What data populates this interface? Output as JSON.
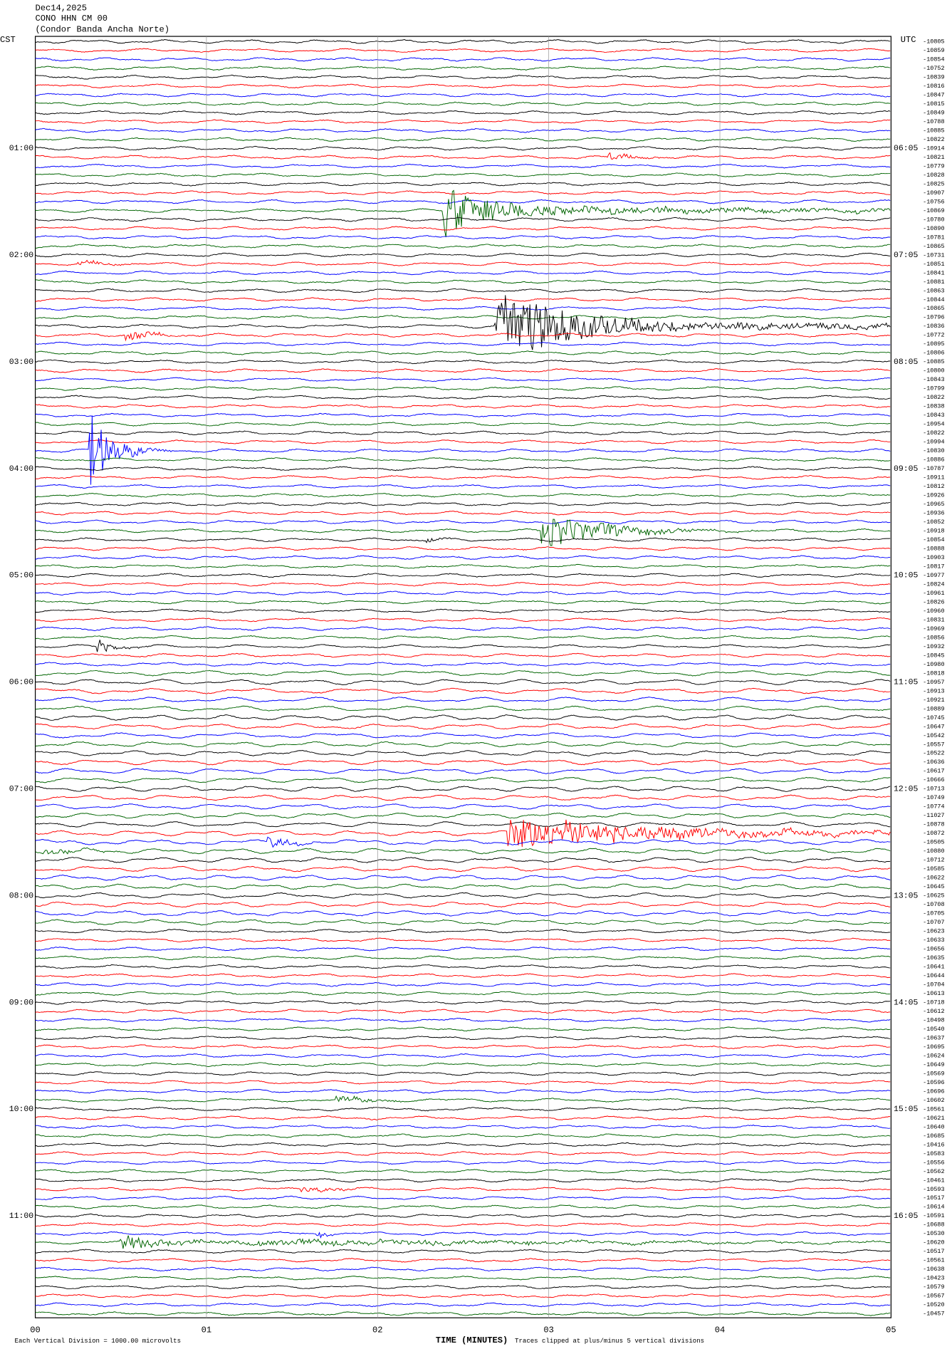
{
  "header": {
    "date": "Dec14,2025",
    "station": "CONO HHN CM 00",
    "site": "(Condor Banda Ancha Norte)"
  },
  "left_timezone": "CST",
  "right_timezone": "UTC",
  "left_times": [
    "01:00",
    "02:00",
    "03:00",
    "04:00",
    "05:00",
    "06:00",
    "07:00",
    "08:00",
    "09:00",
    "10:00",
    "11:00"
  ],
  "right_times": [
    "06:05",
    "07:05",
    "08:05",
    "09:05",
    "10:05",
    "11:05",
    "12:05",
    "13:05",
    "14:05",
    "15:05",
    "16:05"
  ],
  "trace_colors": [
    "#000000",
    "#ff0000",
    "#0000ff",
    "#006400"
  ],
  "trace_labels": [
    "-10805",
    "-10859",
    "-10854",
    "-10752",
    "-10839",
    "-10816",
    "-10847",
    "-10815",
    "-10849",
    "-10788",
    "-10885",
    "-10822",
    "-10914",
    "-10821",
    "-10779",
    "-10828",
    "-10825",
    "-10907",
    "-10756",
    "-10869",
    "-10780",
    "-10890",
    "-10781",
    "-10865",
    "-10731",
    "-10851",
    "-10841",
    "-10881",
    "-10863",
    "-10844",
    "-10865",
    "-10796",
    "-10836",
    "-10772",
    "-10895",
    "-10806",
    "-10885",
    "-10800",
    "-10843",
    "-10799",
    "-10822",
    "-10838",
    "-10843",
    "-10954",
    "-10822",
    "-10994",
    "-10830",
    "-10886",
    "-10787",
    "-10911",
    "-10812",
    "-10926",
    "-10965",
    "-10936",
    "-10852",
    "-10918",
    "-10854",
    "-10888",
    "-10903",
    "-10817",
    "-10977",
    "-10824",
    "-10961",
    "-10826",
    "-10960",
    "-10831",
    "-10969",
    "-10856",
    "-10932",
    "-10845",
    "-10980",
    "-10818",
    "-10957",
    "-10913",
    "-10921",
    "-10889",
    "-10745",
    "-10647",
    "-10542",
    "-10557",
    "-10522",
    "-10636",
    "-10617",
    "-10666",
    "-10713",
    "-10749",
    "-10774",
    "-11027",
    "-10878",
    "-10872",
    "-10505",
    "-10880",
    "-10712",
    "-10585",
    "-10622",
    "-10645",
    "-10625",
    "-10708",
    "-10705",
    "-10707",
    "-10623",
    "-10633",
    "-10656",
    "-10635",
    "-10641",
    "-10644",
    "-10704",
    "-10613",
    "-10718",
    "-10612",
    "-10498",
    "-10540",
    "-10637",
    "-10695",
    "-10624",
    "-10649",
    "-10569",
    "-10596",
    "-10696",
    "-10602",
    "-10561",
    "-10621",
    "-10640",
    "-10685",
    "-10416",
    "-10583",
    "-10556",
    "-10562",
    "-10461",
    "-10593",
    "-10517",
    "-10614",
    "-10591",
    "-10688",
    "-10530",
    "-10620",
    "-10517",
    "-10561",
    "-10638",
    "-10423",
    "-10579",
    "-10567",
    "-10520",
    "-10457"
  ],
  "x_tick_labels": [
    "00",
    "01",
    "02",
    "03",
    "04",
    "05"
  ],
  "x_axis_label": "TIME (MINUTES)",
  "scale_note": "Each Vertical Division = 1000.00 microvolts",
  "clip_note": "Traces clipped at plus/minus 5 vertical divisions"
}
